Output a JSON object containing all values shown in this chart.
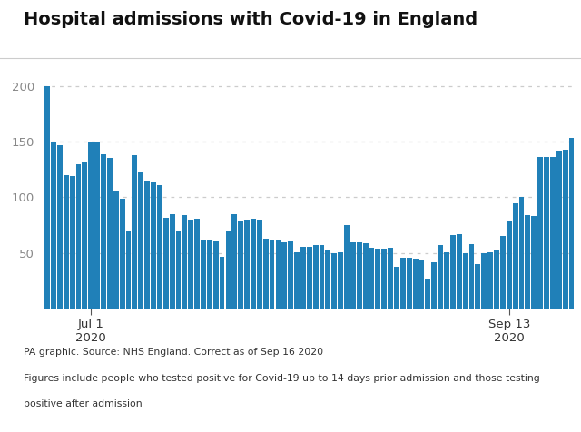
{
  "title": "Hospital admissions with Covid-19 in England",
  "bar_color": "#2080b8",
  "background_color": "#ffffff",
  "yticks": [
    50,
    100,
    150,
    200
  ],
  "ylim": [
    0,
    215
  ],
  "footnote1": "PA graphic. Source: NHS England. Correct as of Sep 16 2020",
  "footnote2": "Figures include people who tested positive for Covid-19 up to 14 days prior admission and those testing",
  "footnote3": "positive after admission",
  "xtick_labels": [
    "Jul 1\n2020",
    "Sep 13\n2020"
  ],
  "jul1_bar_index": 7,
  "sep13_bar_index": 74,
  "values": [
    200,
    150,
    147,
    120,
    119,
    130,
    131,
    150,
    149,
    139,
    135,
    105,
    99,
    70,
    138,
    122,
    115,
    113,
    111,
    82,
    85,
    70,
    84,
    80,
    81,
    62,
    62,
    61,
    47,
    70,
    85,
    79,
    80,
    81,
    80,
    63,
    62,
    62,
    60,
    61,
    51,
    56,
    56,
    57,
    57,
    52,
    50,
    51,
    75,
    60,
    60,
    59,
    55,
    54,
    54,
    55,
    38,
    46,
    46,
    45,
    44,
    27,
    42,
    57,
    51,
    66,
    67,
    50,
    58,
    40,
    50,
    51,
    52,
    65,
    78,
    95,
    100,
    84,
    83,
    136,
    136,
    136,
    142,
    143,
    153
  ]
}
